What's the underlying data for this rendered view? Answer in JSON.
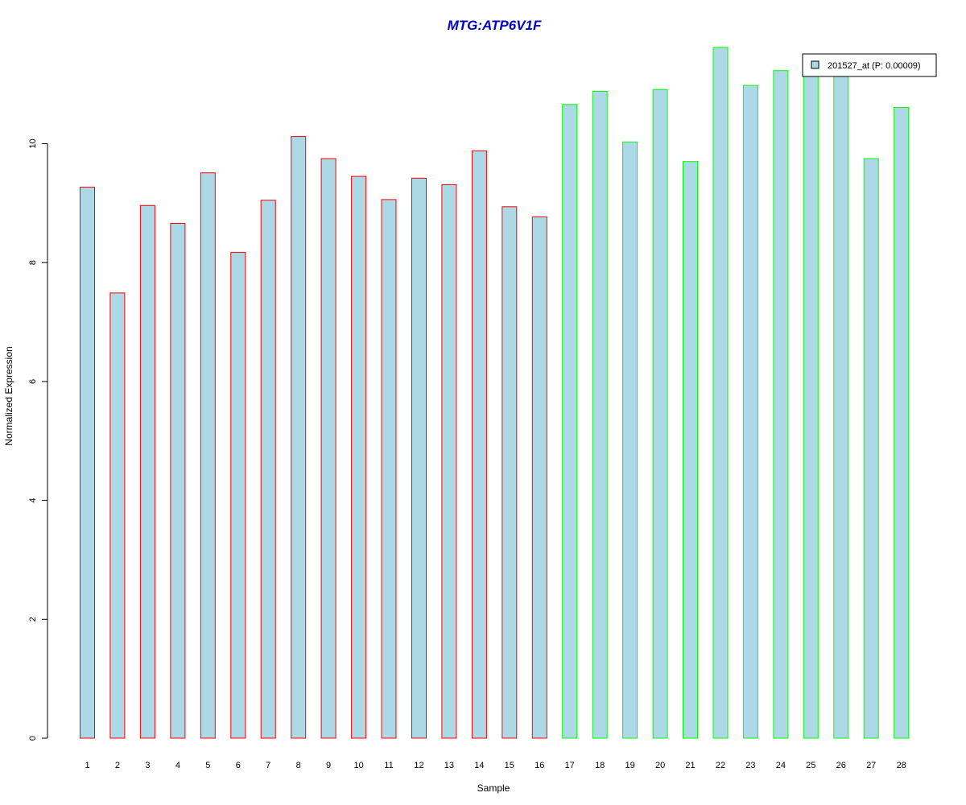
{
  "colors": {
    "title": "#0000CC",
    "bar_fill": "#ADD8E6",
    "group1_border": "#FF0000",
    "group2_border": "#00FF00",
    "axis": "#000000"
  },
  "chart_data": {
    "type": "bar",
    "title": "MTG:ATP6V1F",
    "xlabel": "Sample",
    "ylabel": "Normalized Expression",
    "ylim": [
      0,
      11.6
    ],
    "yticks": [
      0,
      2,
      4,
      6,
      8,
      10
    ],
    "grid": false,
    "legend_position": "top-right",
    "categories": [
      "1",
      "2",
      "3",
      "4",
      "5",
      "6",
      "7",
      "8",
      "9",
      "10",
      "11",
      "12",
      "13",
      "14",
      "15",
      "16",
      "17",
      "18",
      "19",
      "20",
      "21",
      "22",
      "23",
      "24",
      "25",
      "26",
      "27",
      "28"
    ],
    "series": [
      {
        "name": "201527_at (P: 0.00009)",
        "values": [
          9.27,
          7.49,
          8.96,
          8.66,
          9.51,
          8.17,
          9.05,
          10.12,
          9.75,
          9.45,
          9.06,
          9.42,
          9.31,
          9.88,
          8.94,
          8.77,
          10.66,
          10.88,
          10.03,
          10.91,
          9.7,
          11.62,
          10.98,
          11.23,
          11.18,
          11.22,
          9.75,
          10.61
        ]
      }
    ],
    "groups": [
      {
        "color": "#FF0000",
        "indices": [
          0,
          1,
          2,
          3,
          4,
          5,
          6,
          7,
          8,
          9,
          10,
          11,
          12,
          13,
          14,
          15
        ]
      },
      {
        "color": "#00FF00",
        "indices": [
          16,
          17,
          18,
          19,
          20,
          21,
          22,
          23,
          24,
          25,
          26,
          27
        ]
      }
    ]
  }
}
